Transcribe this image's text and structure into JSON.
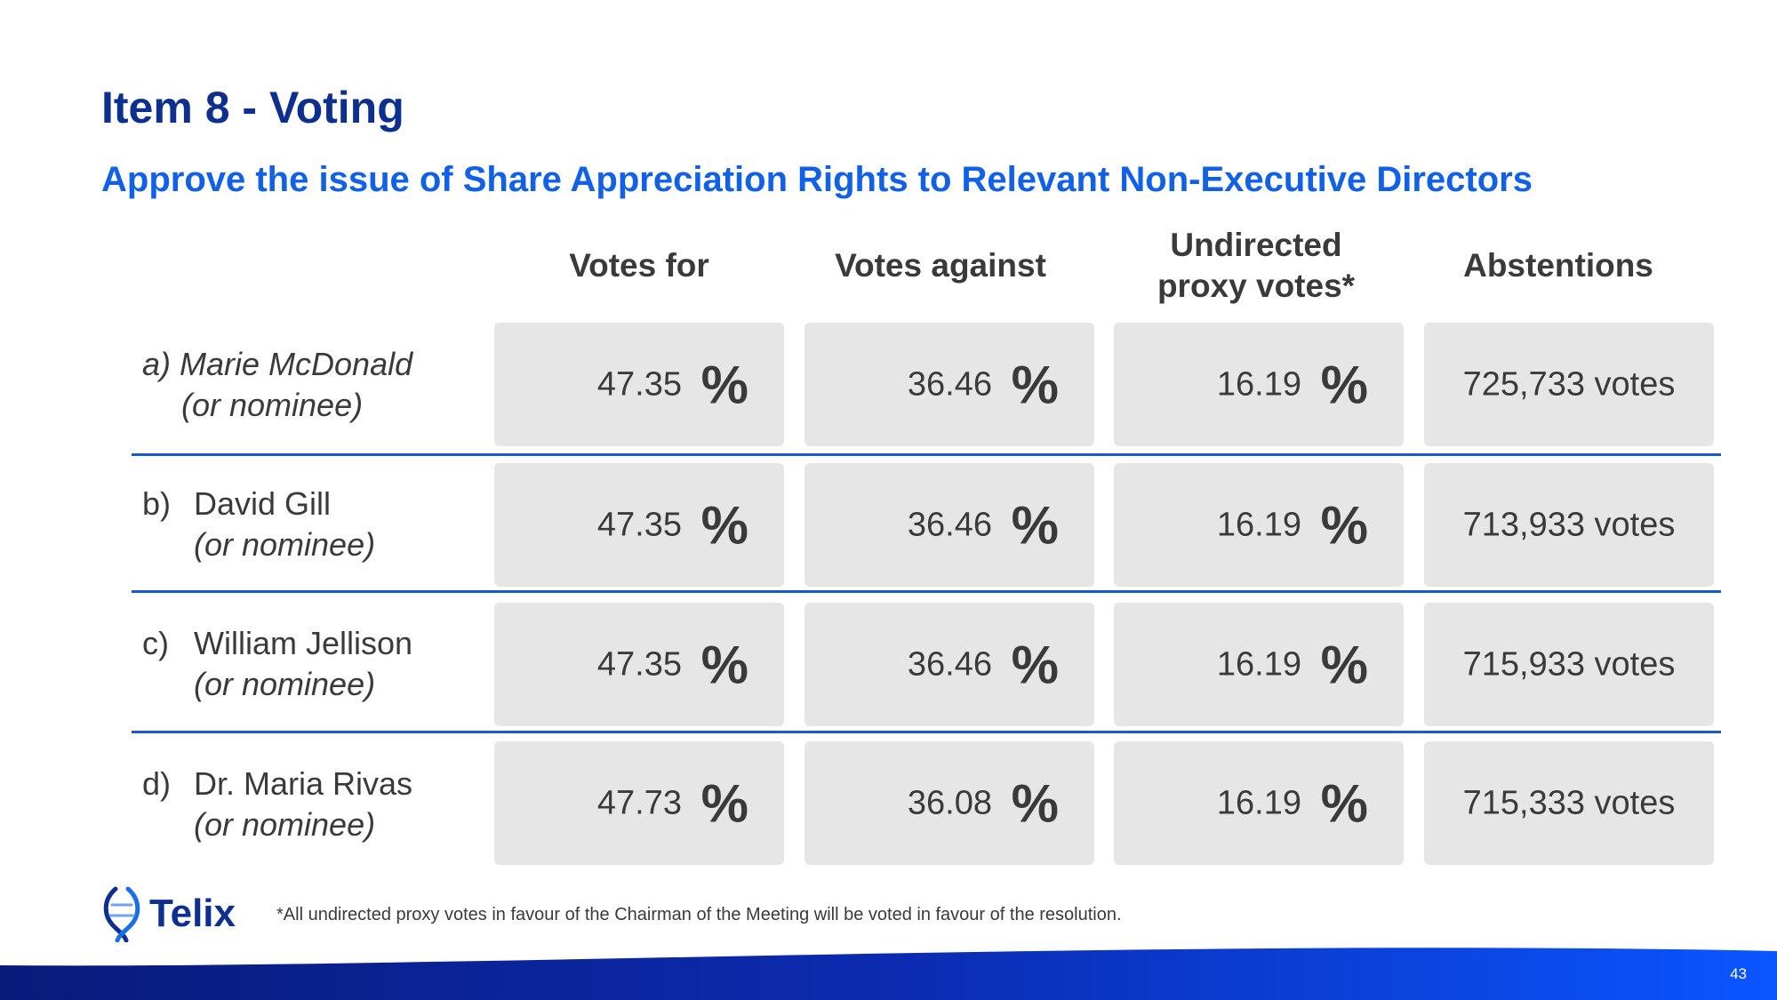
{
  "title": "Item 8 - Voting",
  "subtitle": "Approve the issue of Share Appreciation Rights to Relevant Non-Executive Directors",
  "columns": {
    "votes_for": "Votes for",
    "votes_against": "Votes against",
    "undirected_line1": "Undirected",
    "undirected_line2": "proxy votes*",
    "abstentions": "Abstentions"
  },
  "percent_symbol": "%",
  "rows": [
    {
      "letter": "a)",
      "name": "Marie McDonald",
      "sub": "(or nominee)",
      "votes_for": "47.35",
      "votes_against": "36.46",
      "undirected": "16.19",
      "abstentions": "725,733 votes"
    },
    {
      "letter": "b)",
      "name": "David Gill",
      "sub": "(or nominee)",
      "votes_for": "47.35",
      "votes_against": "36.46",
      "undirected": "16.19",
      "abstentions": "713,933 votes"
    },
    {
      "letter": "c)",
      "name": "William Jellison",
      "sub": "(or nominee)",
      "votes_for": "47.35",
      "votes_against": "36.46",
      "undirected": "16.19",
      "abstentions": "715,933 votes"
    },
    {
      "letter": "d)",
      "name": "Dr. Maria Rivas",
      "sub": "(or nominee)",
      "votes_for": "47.73",
      "votes_against": "36.08",
      "undirected": "16.19",
      "abstentions": "715,333 votes"
    }
  ],
  "logo": {
    "text": "Telix",
    "icon": "telix-helix-icon"
  },
  "footnote": "*All undirected proxy votes in favour of the Chairman of the Meeting will be voted in favour of the resolution.",
  "page_number": "43",
  "colors": {
    "title": "#0d2f8f",
    "subtitle": "#1060e8",
    "divider": "#1a56d6",
    "cell": "#e6e6e6"
  }
}
